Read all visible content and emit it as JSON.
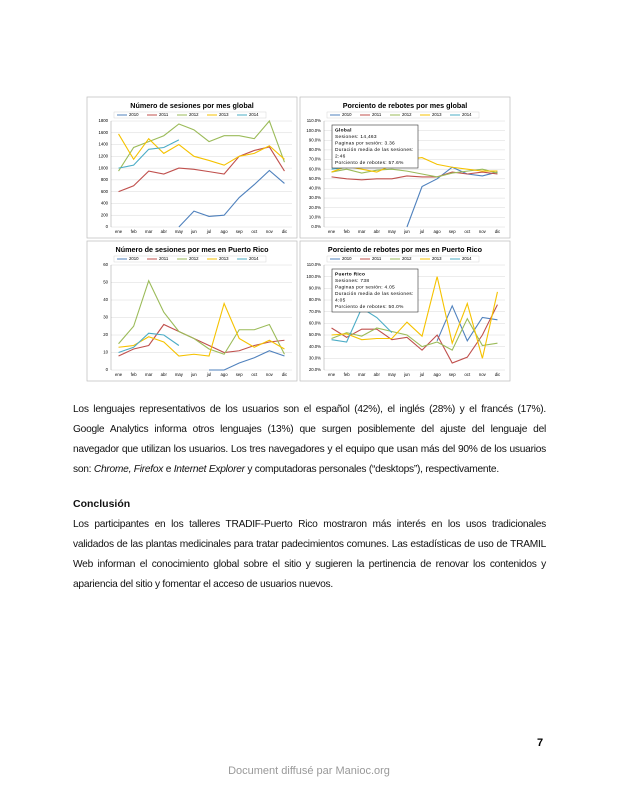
{
  "chart_data": [
    {
      "type": "line",
      "title": "Número de sesiones por mes global",
      "categories": [
        "ene",
        "feb",
        "mar",
        "abr",
        "may",
        "jun",
        "jul",
        "ago",
        "sep",
        "oct",
        "nov",
        "dic"
      ],
      "ylim": [
        0,
        1800
      ],
      "yticks": [
        0,
        200,
        400,
        600,
        800,
        1000,
        1200,
        1400,
        1600,
        1800
      ],
      "grid": true,
      "series": [
        {
          "name": "2010",
          "color": "#4f81bd",
          "values": [
            null,
            null,
            null,
            null,
            0,
            270,
            180,
            200,
            500,
            720,
            960,
            740
          ]
        },
        {
          "name": "2011",
          "color": "#c0504d",
          "values": [
            600,
            700,
            950,
            900,
            1000,
            980,
            940,
            900,
            1200,
            1300,
            1360,
            950
          ]
        },
        {
          "name": "2012",
          "color": "#9bbb59",
          "values": [
            950,
            1350,
            1450,
            1550,
            1750,
            1650,
            1450,
            1550,
            1550,
            1500,
            1800,
            1100
          ]
        },
        {
          "name": "2013",
          "color": "#f5c200",
          "values": [
            1580,
            1150,
            1500,
            1250,
            1400,
            1200,
            1130,
            1050,
            1200,
            1250,
            1380,
            1150
          ]
        },
        {
          "name": "2014",
          "color": "#4bacc6",
          "values": [
            1000,
            1050,
            1320,
            1350,
            1480,
            null,
            null,
            null,
            null,
            null,
            null,
            null
          ]
        }
      ]
    },
    {
      "type": "line",
      "title": "Porciento de rebotes por mes global",
      "categories": [
        "ene",
        "feb",
        "mar",
        "abr",
        "may",
        "jun",
        "jul",
        "ago",
        "sep",
        "oct",
        "nov",
        "dic"
      ],
      "ylim": [
        0,
        110
      ],
      "grid": true,
      "yticks": [
        {
          "value": 0,
          "label": "0.0%"
        },
        {
          "value": 10,
          "label": "10.0%"
        },
        {
          "value": 20,
          "label": "20.0%"
        },
        {
          "value": 30,
          "label": "30.0%"
        },
        {
          "value": 40,
          "label": "40.0%"
        },
        {
          "value": 50,
          "label": "50.0%"
        },
        {
          "value": 60,
          "label": "60.0%"
        },
        {
          "value": 70,
          "label": "70.0%"
        },
        {
          "value": 80,
          "label": "80.0%"
        },
        {
          "value": 90,
          "label": "90.0%"
        },
        {
          "value": 100,
          "label": "100.0%"
        },
        {
          "value": 110,
          "label": "110.0%"
        }
      ],
      "annotation": [
        "Global",
        "Sesiones: 14,463",
        "Paginas por sesión: 3.36",
        "Duración media de las sesiones:",
        "2:46",
        "Porciento de rebotes: 57.6%"
      ],
      "series": [
        {
          "name": "2010",
          "color": "#4f81bd",
          "values": [
            null,
            null,
            null,
            null,
            null,
            0,
            42,
            50,
            62,
            55,
            53,
            57
          ]
        },
        {
          "name": "2011",
          "color": "#c0504d",
          "values": [
            52,
            50,
            49,
            50,
            50,
            53,
            52,
            52,
            57,
            55,
            57,
            55
          ]
        },
        {
          "name": "2012",
          "color": "#9bbb59",
          "values": [
            57,
            60,
            56,
            59,
            60,
            58,
            55,
            52,
            56,
            58,
            60,
            56
          ]
        },
        {
          "name": "2013",
          "color": "#f5c200",
          "values": [
            57,
            63,
            60,
            57,
            64,
            70,
            72,
            65,
            62,
            60,
            58,
            58
          ]
        },
        {
          "name": "2014",
          "color": "#4bacc6",
          "values": [
            60,
            62,
            63,
            68,
            64,
            null,
            null,
            null,
            null,
            null,
            null,
            null
          ]
        }
      ]
    },
    {
      "type": "line",
      "title": "Número de sesiones por mes en Puerto Rico",
      "categories": [
        "ene",
        "feb",
        "mar",
        "abr",
        "may",
        "jun",
        "jul",
        "ago",
        "sep",
        "oct",
        "nov",
        "dic"
      ],
      "ylim": [
        0,
        60
      ],
      "yticks": [
        0,
        10,
        20,
        30,
        40,
        50,
        60
      ],
      "grid": true,
      "series": [
        {
          "name": "2010",
          "color": "#4f81bd",
          "values": [
            null,
            null,
            null,
            null,
            null,
            null,
            0,
            0,
            4,
            7,
            11,
            8
          ]
        },
        {
          "name": "2011",
          "color": "#c0504d",
          "values": [
            8,
            12,
            14,
            26,
            22,
            18,
            14,
            10,
            11,
            14,
            16,
            17
          ]
        },
        {
          "name": "2012",
          "color": "#9bbb59",
          "values": [
            15,
            25,
            51,
            33,
            22,
            18,
            12,
            9,
            23,
            23,
            26,
            9
          ]
        },
        {
          "name": "2013",
          "color": "#f5c200",
          "values": [
            13,
            14,
            19,
            16,
            8,
            9,
            8,
            38,
            18,
            13,
            17,
            12
          ]
        },
        {
          "name": "2014",
          "color": "#4bacc6",
          "values": [
            10,
            13,
            21,
            20,
            14,
            null,
            null,
            null,
            null,
            null,
            null,
            null
          ]
        }
      ]
    },
    {
      "type": "line",
      "title": "Porciento de rebotes por mes en Puerto Rico",
      "categories": [
        "ene",
        "feb",
        "mar",
        "abr",
        "may",
        "jun",
        "jul",
        "ago",
        "sep",
        "oct",
        "nov",
        "dic"
      ],
      "ylim": [
        20,
        110
      ],
      "grid": true,
      "yticks": [
        {
          "value": 20,
          "label": "20.0%"
        },
        {
          "value": 30,
          "label": "30.0%"
        },
        {
          "value": 40,
          "label": "40.0%"
        },
        {
          "value": 50,
          "label": "50.0%"
        },
        {
          "value": 60,
          "label": "60.0%"
        },
        {
          "value": 70,
          "label": "70.0%"
        },
        {
          "value": 80,
          "label": "80.0%"
        },
        {
          "value": 90,
          "label": "90.0%"
        },
        {
          "value": 100,
          "label": "100.0%"
        },
        {
          "value": 110,
          "label": "110.0%"
        }
      ],
      "annotation": [
        "Puerto Rico",
        "Sesiones: 738",
        "Paginas por sesión: 4.05",
        "Duración media de las sesiones:",
        "4:05",
        "Porciento de rebotes: 50.0%"
      ],
      "series": [
        {
          "name": "2010",
          "color": "#4f81bd",
          "values": [
            null,
            null,
            null,
            null,
            null,
            null,
            null,
            45,
            75,
            45,
            65,
            63
          ]
        },
        {
          "name": "2011",
          "color": "#c0504d",
          "values": [
            56,
            48,
            55,
            55,
            46,
            48,
            37,
            50,
            26,
            31,
            50,
            76
          ]
        },
        {
          "name": "2012",
          "color": "#9bbb59",
          "values": [
            47,
            52,
            49,
            56,
            53,
            50,
            40,
            44,
            37,
            64,
            41,
            43
          ]
        },
        {
          "name": "2013",
          "color": "#f5c200",
          "values": [
            50,
            51,
            46,
            47,
            47,
            61,
            49,
            100,
            43,
            77,
            30,
            87
          ]
        },
        {
          "name": "2014",
          "color": "#4bacc6",
          "values": [
            46,
            44,
            73,
            65,
            52,
            null,
            null,
            null,
            null,
            null,
            null,
            null
          ]
        }
      ]
    }
  ],
  "paragraph_1": [
    "Los lenguajes representativos de los usuarios son el español (42%), el inglés (28%) y el francés (17%). Google Analytics informa otros lenguajes (13%) que surgen posiblemente del ajuste del lenguaje del navegador que utilizan los usuarios. Los tres navegadores y el equipo que usan más del 90% de los usuarios son: ",
    "Chrome",
    ", ",
    "Firefox",
    " e ",
    "Internet Explorer",
    " y computadoras personales (“desktops”), respectivamente."
  ],
  "heading": "Conclusión",
  "paragraph_2": "Los participantes en los talleres TRADIF-Puerto Rico mostraron más interés en los usos tradicionales validados de las plantas medicinales para tratar padecimientos comunes. Las estadísticas de uso de TRAMIL Web informan el conocimiento global sobre el sitio y sugieren la pertinencia de renovar los contenidos y apariencia del sitio y fomentar el acceso de usuarios nuevos.",
  "page_number": "7",
  "footer": "Document diffusé par Manioc.org"
}
